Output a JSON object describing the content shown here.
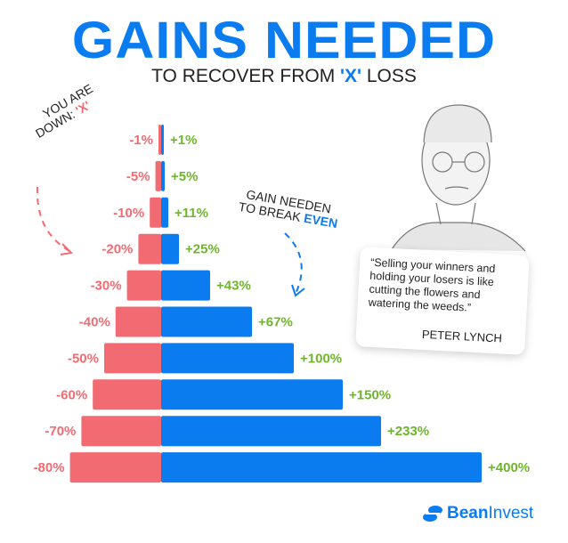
{
  "title": "GAINS NEEDED",
  "subtitle": {
    "before": "TO RECOVER FROM ",
    "highlight": "'X'",
    "after": " LOSS"
  },
  "left_note": {
    "line1": "YOU ARE",
    "line2": "DOWN: ",
    "highlight": "'X'"
  },
  "right_note": {
    "line1": "GAIN NEEDEN",
    "line2": "TO BREAK ",
    "highlight": "EVEN"
  },
  "quote": {
    "text": "“Selling your winners and holding your losers is like cutting the flowers and watering the weeds.”",
    "author": "PETER LYNCH"
  },
  "brand": {
    "bold": "Bean",
    "regular": "Invest"
  },
  "colors": {
    "loss": "#f26b72",
    "gain_bar": "#0a7cf0",
    "gain_label": "#6fb52c",
    "title": "#0a7cf0"
  },
  "chart_data": {
    "type": "bar",
    "orientation": "horizontal-diverging",
    "loss_labels": [
      "-1%",
      "-5%",
      "-10%",
      "-20%",
      "-30%",
      "-40%",
      "-50%",
      "-60%",
      "-70%",
      "-80%"
    ],
    "gain_labels": [
      "+1%",
      "+5%",
      "+11%",
      "+25%",
      "+43%",
      "+67%",
      "+100%",
      "+150%",
      "+233%",
      "+400%"
    ],
    "series": [
      {
        "values": [
          -1,
          -5,
          -10,
          -20,
          -30,
          -40,
          -50,
          -60,
          -70,
          -80
        ]
      },
      {
        "values": [
          1,
          5,
          11,
          25,
          43,
          67,
          100,
          150,
          233,
          400
        ]
      }
    ]
  }
}
